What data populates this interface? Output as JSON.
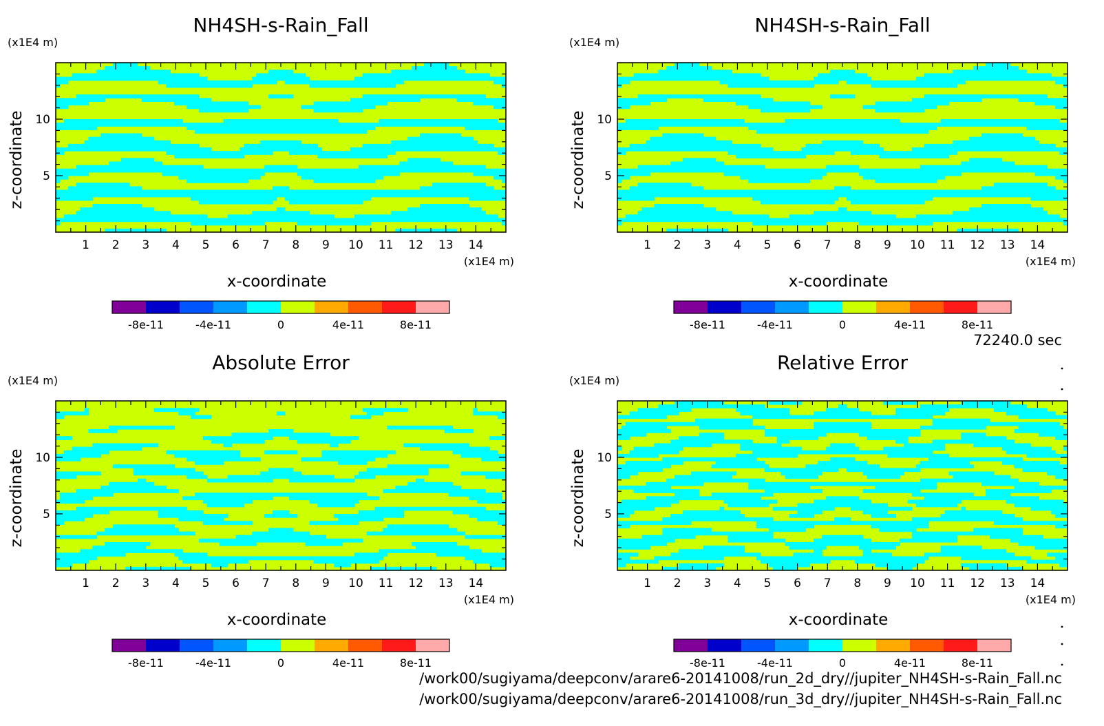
{
  "figure": {
    "time_label": "72240.0 sec",
    "file_paths": [
      "/work00/sugiyama/deepconv/arare6-20141008/run_2d_dry//jupiter_NH4SH-s-Rain_Fall.nc",
      "/work00/sugiyama/deepconv/arare6-20141008/run_3d_dry//jupiter_NH4SH-s-Rain_Fall.nc"
    ],
    "colors": {
      "field_zero": "#ccff00",
      "field_negative": "#00ffff",
      "frame": "#000000"
    },
    "colorbar_palette": [
      "#800099",
      "#0000cc",
      "#0055ff",
      "#0099ff",
      "#00ffff",
      "#ccff00",
      "#ffaa00",
      "#ff5a00",
      "#ff1a1a",
      "#ffaaaa"
    ]
  },
  "chart_data": [
    {
      "type": "heatmap",
      "title": "NH4SH-s-Rain_Fall",
      "xlabel": "x-coordinate",
      "ylabel": "z-coordinate",
      "x_unit": "(x1E4 m)",
      "y_unit": "(x1E4 m)",
      "xlim": [
        0,
        15
      ],
      "ylim": [
        0,
        15
      ],
      "x_ticks": [
        "1",
        "2",
        "3",
        "4",
        "5",
        "6",
        "7",
        "8",
        "9",
        "10",
        "11",
        "12",
        "13",
        "14"
      ],
      "y_ticks": [
        "5",
        "10"
      ],
      "colorbar_ticks": [
        "-8e-11",
        "-4e-11",
        "0",
        "4e-11",
        "8e-11"
      ],
      "colorbar_range": [
        -1e-10,
        1e-10
      ]
    },
    {
      "type": "heatmap",
      "title": "NH4SH-s-Rain_Fall",
      "xlabel": "x-coordinate",
      "ylabel": "z-coordinate",
      "x_unit": "(x1E4 m)",
      "y_unit": "(x1E4 m)",
      "xlim": [
        0,
        15
      ],
      "ylim": [
        0,
        15
      ],
      "x_ticks": [
        "1",
        "2",
        "3",
        "4",
        "5",
        "6",
        "7",
        "8",
        "9",
        "10",
        "11",
        "12",
        "13",
        "14"
      ],
      "y_ticks": [
        "5",
        "10"
      ],
      "colorbar_ticks": [
        "-8e-11",
        "-4e-11",
        "0",
        "4e-11",
        "8e-11"
      ],
      "colorbar_range": [
        -1e-10,
        1e-10
      ]
    },
    {
      "type": "heatmap",
      "title": "Absolute Error",
      "xlabel": "x-coordinate",
      "ylabel": "z-coordinate",
      "x_unit": "(x1E4 m)",
      "y_unit": "(x1E4 m)",
      "xlim": [
        0,
        15
      ],
      "ylim": [
        0,
        15
      ],
      "x_ticks": [
        "1",
        "2",
        "3",
        "4",
        "5",
        "6",
        "7",
        "8",
        "9",
        "10",
        "11",
        "12",
        "13",
        "14"
      ],
      "y_ticks": [
        "5",
        "10"
      ],
      "colorbar_ticks": [
        "-8e-11",
        "-4e-11",
        "0",
        "4e-11",
        "8e-11"
      ],
      "colorbar_range": [
        -1e-10,
        1e-10
      ]
    },
    {
      "type": "heatmap",
      "title": "Relative Error",
      "xlabel": "x-coordinate",
      "ylabel": "z-coordinate",
      "x_unit": "(x1E4 m)",
      "y_unit": "(x1E4 m)",
      "xlim": [
        0,
        15
      ],
      "ylim": [
        0,
        15
      ],
      "x_ticks": [
        "1",
        "2",
        "3",
        "4",
        "5",
        "6",
        "7",
        "8",
        "9",
        "10",
        "11",
        "12",
        "13",
        "14"
      ],
      "y_ticks": [
        "5",
        "10"
      ],
      "colorbar_ticks": [
        "-8e-11",
        "-4e-11",
        "0",
        "4e-11",
        "8e-11"
      ],
      "colorbar_range": [
        -1e-10,
        1e-10
      ]
    }
  ]
}
